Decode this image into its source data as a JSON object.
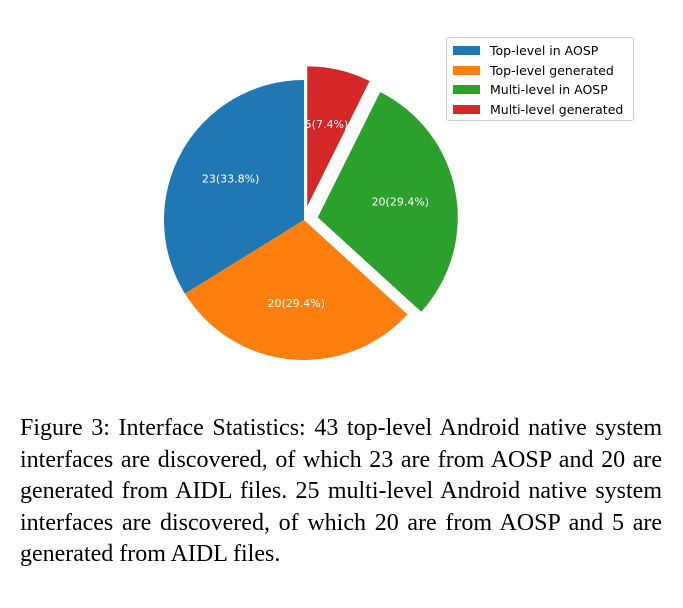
{
  "chart_data": {
    "type": "pie",
    "slices": [
      {
        "name": "Top-level in AOSP",
        "value": 23,
        "label": "23(33.8%)",
        "color": "#1f77b4",
        "exploded": false
      },
      {
        "name": "Top-level generated",
        "value": 20,
        "label": "20(29.4%)",
        "color": "#ff7f0e",
        "exploded": false
      },
      {
        "name": "Multi-level in AOSP",
        "value": 20,
        "label": "20(29.4%)",
        "color": "#2ca02c",
        "exploded": true
      },
      {
        "name": "Multi-level generated",
        "value": 5,
        "label": "5(7.4%)",
        "color": "#d62728",
        "exploded": true
      }
    ],
    "legend_position": "top-right",
    "legend": [
      {
        "label": "Top-level in AOSP",
        "color": "#1f77b4"
      },
      {
        "label": "Top-level generated",
        "color": "#ff7f0e"
      },
      {
        "label": "Multi-level in AOSP",
        "color": "#2ca02c"
      },
      {
        "label": "Multi-level generated",
        "color": "#d62728"
      }
    ]
  },
  "caption": "Figure 3: Interface Statistics: 43 top-level Android native system interfaces are discovered, of which 23 are from AOSP and 20 are generated from AIDL files. 25 multi-level Android native system interfaces are discovered, of which 20 are from AOSP and 5 are generated from AIDL files."
}
